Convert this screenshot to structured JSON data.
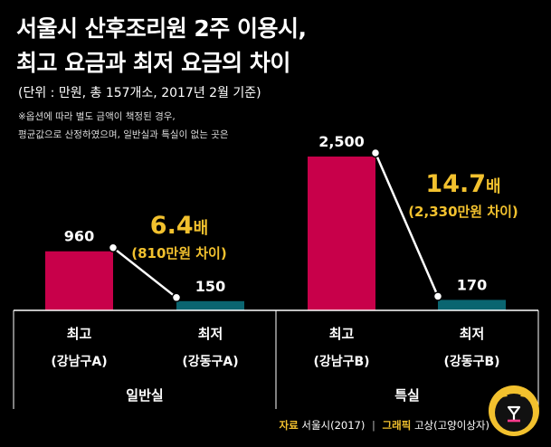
{
  "title_line1": "서울시 산후조리원 2주 이용시,",
  "title_line2": "최고 요금과 최저 요금의 차이",
  "unit_note": "(단위 : 만원, 총 157개소, 2017년 2월 기준)",
  "footnote_line1": "※옵션에 따라 별도 금액이 책정된 경우,",
  "footnote_line2": "평균값으로 산정하였으며, 일반실과 특실이 없는 곳은",
  "footer": {
    "source_label": "자료",
    "source": "서울시(2017)",
    "separator": "|",
    "graphic_label": "그래픽",
    "graphic": "고상(고양이상자)"
  },
  "colors": {
    "max_bar": "#c8004a",
    "min_bar": "#0a6570",
    "ratio_text": "#f2c12e",
    "text": "#ffffff",
    "axis": "#ffffff",
    "background": "#000000"
  },
  "chart_data": {
    "type": "bar",
    "unit": "만원",
    "ylim": [
      0,
      2500
    ],
    "groups": [
      {
        "name": "일반실",
        "bars": [
          {
            "label": "최고",
            "sublabel": "(강남구A)",
            "value": 960,
            "value_label": "960",
            "kind": "max"
          },
          {
            "label": "최저",
            "sublabel": "(강동구A)",
            "value": 150,
            "value_label": "150",
            "kind": "min"
          }
        ],
        "ratio_label": "6.4",
        "ratio_suffix": "배",
        "diff_label": "(810만원 차이)"
      },
      {
        "name": "특실",
        "bars": [
          {
            "label": "최고",
            "sublabel": "(강남구B)",
            "value": 2500,
            "value_label": "2,500",
            "kind": "max"
          },
          {
            "label": "최저",
            "sublabel": "(강동구B)",
            "value": 170,
            "value_label": "170",
            "kind": "min"
          }
        ],
        "ratio_label": "14.7",
        "ratio_suffix": "배",
        "diff_label": "(2,330만원 차이)"
      }
    ]
  }
}
